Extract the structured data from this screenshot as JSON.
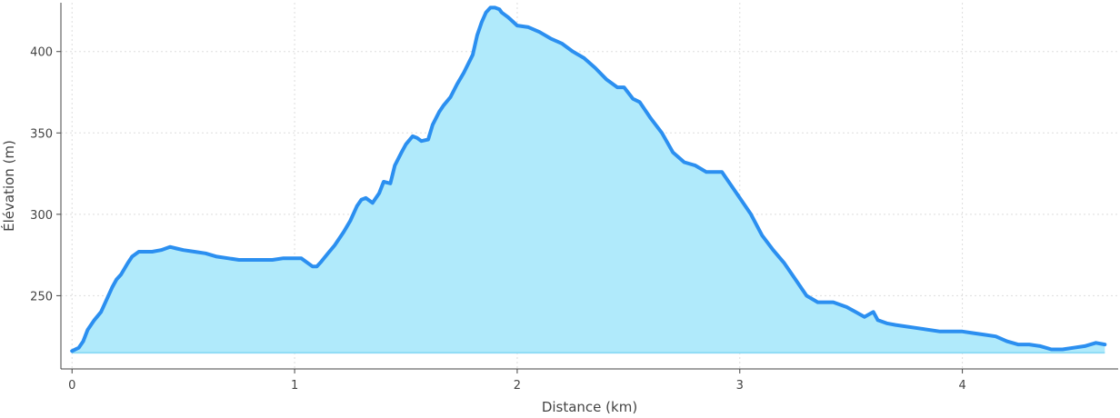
{
  "chart_data": {
    "type": "area",
    "title": "",
    "xlabel": "Distance (km)",
    "ylabel": "Élévation (m)",
    "xlim": [
      -0.05,
      4.7
    ],
    "ylim": [
      205,
      430
    ],
    "x_ticks": [
      0,
      1,
      2,
      3,
      4
    ],
    "y_ticks": [
      250,
      300,
      350,
      400
    ],
    "grid": true,
    "baseline": 215,
    "colors": {
      "line": "#2b8ff0",
      "fill": "#b0eafb",
      "baseline": "#8fdcf5",
      "grid": "#dddddd",
      "axis": "#444444"
    },
    "series": [
      {
        "x": [
          0,
          0.03,
          0.05,
          0.07,
          0.1,
          0.13,
          0.15,
          0.18,
          0.2,
          0.22,
          0.25,
          0.27,
          0.3,
          0.33,
          0.36,
          0.4,
          0.44,
          0.47,
          0.5,
          0.55,
          0.6,
          0.65,
          0.7,
          0.75,
          0.8,
          0.85,
          0.9,
          0.95,
          1.0,
          1.03,
          1.06,
          1.08,
          1.1,
          1.12,
          1.15,
          1.18,
          1.22,
          1.25,
          1.28,
          1.3,
          1.32,
          1.35,
          1.38,
          1.4,
          1.43,
          1.45,
          1.48,
          1.5,
          1.53,
          1.55,
          1.57,
          1.6,
          1.62,
          1.65,
          1.67,
          1.7,
          1.73,
          1.76,
          1.8,
          1.82,
          1.84,
          1.86,
          1.88,
          1.9,
          1.92,
          1.93,
          1.96,
          2.0,
          2.05,
          2.1,
          2.15,
          2.2,
          2.25,
          2.3,
          2.35,
          2.4,
          2.45,
          2.48,
          2.52,
          2.55,
          2.6,
          2.65,
          2.7,
          2.75,
          2.8,
          2.85,
          2.88,
          2.92,
          2.93,
          2.96,
          3.0,
          3.05,
          3.1,
          3.15,
          3.2,
          3.25,
          3.3,
          3.35,
          3.38,
          3.42,
          3.48,
          3.52,
          3.56,
          3.6,
          3.62,
          3.66,
          3.7,
          3.8,
          3.9,
          4.0,
          4.05,
          4.1,
          4.15,
          4.2,
          4.25,
          4.3,
          4.35,
          4.4,
          4.45,
          4.5,
          4.55,
          4.6,
          4.64
        ],
        "y": [
          216,
          218,
          222,
          229,
          235,
          240,
          246,
          255,
          260,
          263,
          270,
          274,
          277,
          277,
          277,
          278,
          280,
          279,
          278,
          277,
          276,
          274,
          273,
          272,
          272,
          272,
          272,
          273,
          273,
          273,
          270,
          268,
          268,
          271,
          276,
          281,
          289,
          296,
          305,
          309,
          310,
          307,
          313,
          320,
          319,
          330,
          338,
          343,
          348,
          347,
          345,
          346,
          355,
          363,
          367,
          372,
          380,
          387,
          398,
          410,
          418,
          424,
          427,
          427,
          426,
          424,
          421,
          416,
          415,
          412,
          408,
          405,
          400,
          396,
          390,
          383,
          378,
          378,
          371,
          369,
          359,
          350,
          338,
          332,
          330,
          326,
          326,
          326,
          324,
          318,
          310,
          300,
          287,
          278,
          270,
          260,
          250,
          246,
          246,
          246,
          243,
          240,
          237,
          240,
          235,
          233,
          232,
          230,
          228,
          228,
          227,
          226,
          225,
          222,
          220,
          220,
          219,
          217,
          217,
          218,
          219,
          221,
          220
        ]
      }
    ]
  }
}
